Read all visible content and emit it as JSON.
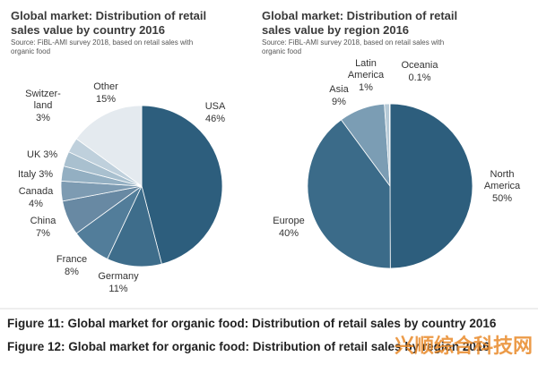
{
  "chart_data": [
    {
      "type": "pie",
      "title": "Global market: Distribution of retail\nsales value by country 2016",
      "subtitle": "Source: FiBL-AMI survey 2018, based on retail sales with\norganic food",
      "categories": [
        "USA",
        "Germany",
        "France",
        "China",
        "Canada",
        "Italy",
        "UK",
        "Switzer-\nland",
        "Other"
      ],
      "values": [
        46,
        11,
        8,
        7,
        4,
        3,
        3,
        3,
        15
      ],
      "value_labels": [
        "46%",
        "11%",
        "8%",
        "7%",
        "4%",
        "3%",
        "3%",
        "3%",
        "15%"
      ],
      "colors": [
        "#2d5e7d",
        "#3e6d8b",
        "#527d9a",
        "#6889a3",
        "#7d9bb2",
        "#93afc2",
        "#a9c0cf",
        "#bfd0dc",
        "#e4eaef"
      ]
    },
    {
      "type": "pie",
      "title": "Global market: Distribution of retail\nsales value by region 2016",
      "subtitle": "Source: FiBL-AMI survey 2018, based on retail sales with\norganic food",
      "categories": [
        "North\nAmerica",
        "Europe",
        "Asia",
        "Latin\nAmerica",
        "Oceania"
      ],
      "values": [
        50,
        40,
        9,
        1,
        0.1
      ],
      "value_labels": [
        "50%",
        "40%",
        "9%",
        "1%",
        "0.1%"
      ],
      "colors": [
        "#2d5e7d",
        "#3b6b89",
        "#7b9db4",
        "#b6cad7",
        "#dce6ed"
      ]
    }
  ],
  "captions": [
    "Figure 11: Global market for organic food: Distribution of retail sales by country 2016",
    "Figure 12: Global market for organic food: Distribution of retail sales by region 2016"
  ],
  "watermark": "兴顺综合科技网"
}
